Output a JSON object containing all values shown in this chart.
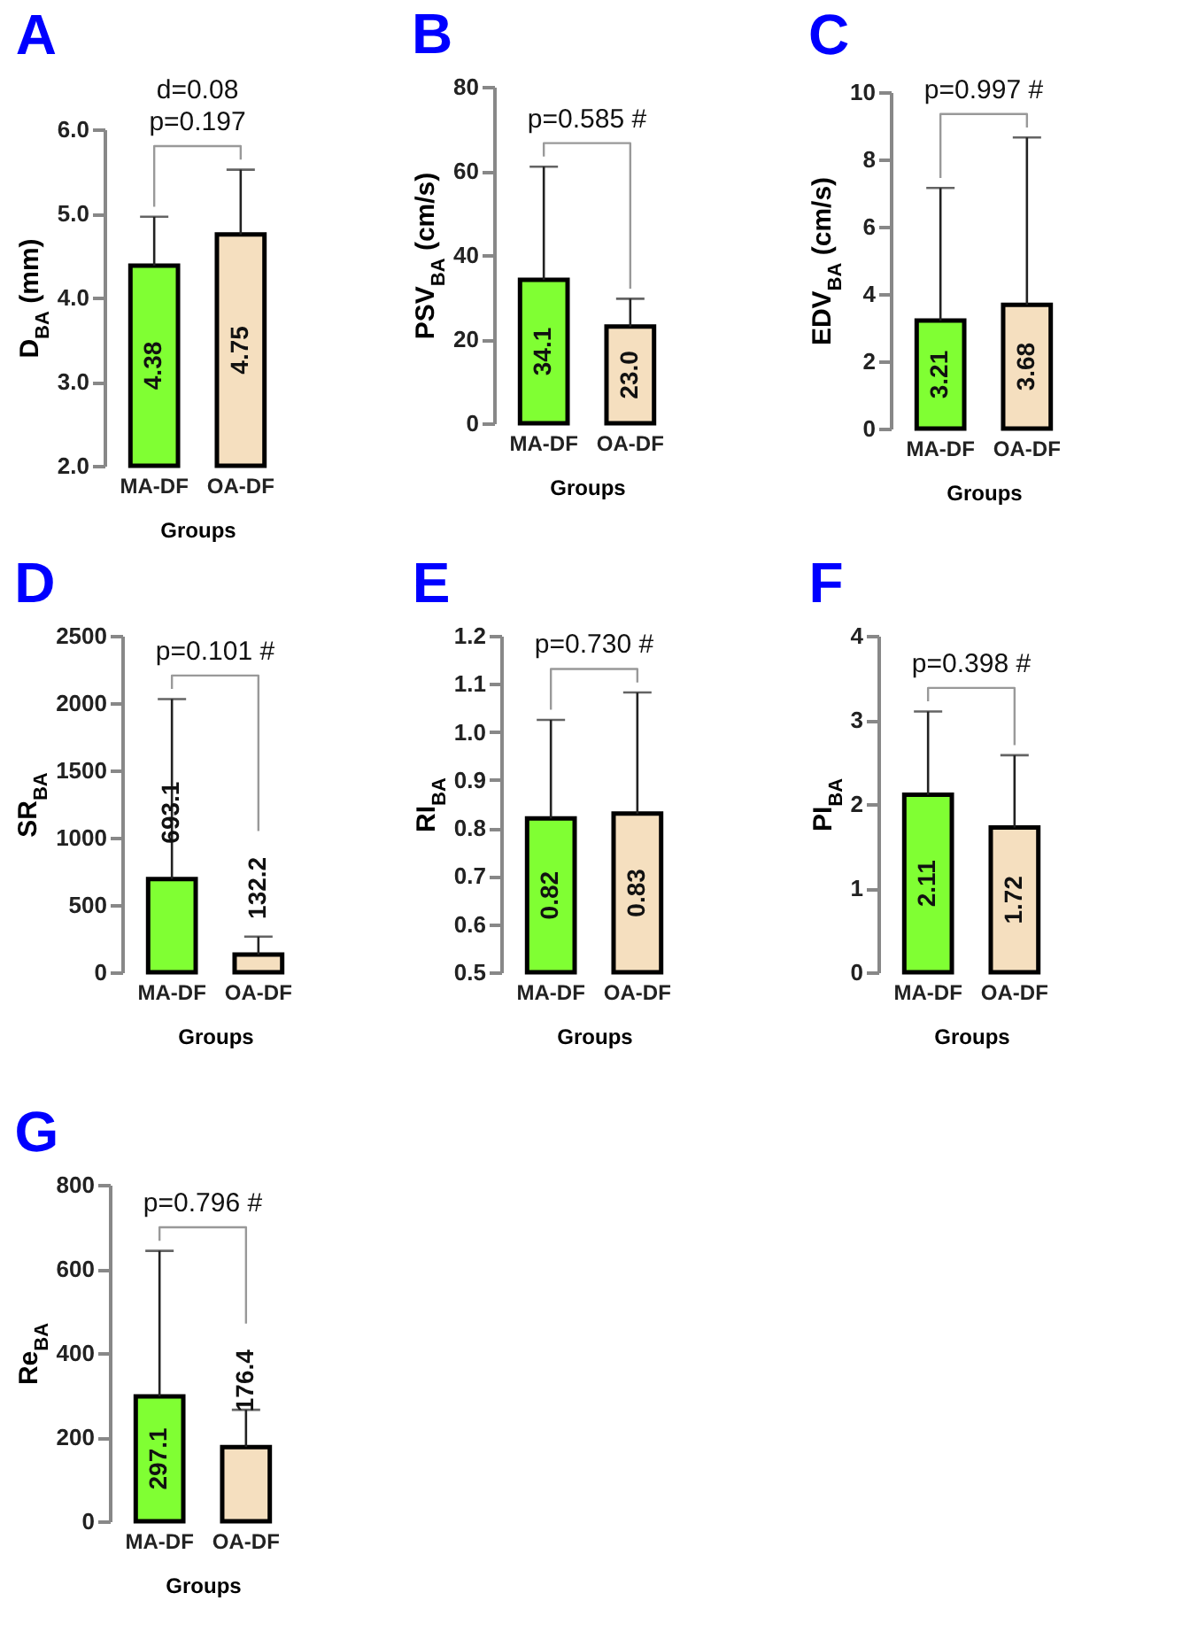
{
  "chart_data": [
    {
      "type": "bar",
      "title": "A",
      "categories": [
        "MA-DF",
        "OA-DF"
      ],
      "values": [
        4.38,
        4.75
      ],
      "value_labels": [
        "4.38",
        "4.75"
      ],
      "colors": [
        "#80ff33",
        "#f5dfbf"
      ],
      "errors": [
        [
          4.38,
          4.96
        ],
        [
          4.75,
          5.52
        ]
      ],
      "ylim": [
        2,
        6
      ],
      "yticks": [
        {
          "value": 2,
          "label": "2.0"
        },
        {
          "value": 3,
          "label": "3.0"
        },
        {
          "value": 4,
          "label": "4.0"
        },
        {
          "value": 5,
          "label": "5.0"
        },
        {
          "value": 6,
          "label": "6.0"
        }
      ],
      "xlabel": "Groups",
      "ylabel": "D$_{BA}$ (mm)",
      "annotations": [
        "d=0.08",
        "p=0.197"
      ]
    },
    {
      "type": "bar",
      "title": "B",
      "categories": [
        "MA-DF",
        "OA-DF"
      ],
      "values": [
        34.1,
        23.0
      ],
      "value_labels": [
        "34.1",
        "23.0"
      ],
      "colors": [
        "#80ff33",
        "#f5dfbf"
      ],
      "errors": [
        [
          34.1,
          61
        ],
        [
          23.0,
          29.6
        ]
      ],
      "ylim": [
        0,
        80
      ],
      "yticks": [
        0,
        20,
        40,
        60,
        80
      ],
      "xlabel": "Groups",
      "ylabel": "PSV$_{BA}$ (cm/s)",
      "annotations": [
        "p=0.585 #"
      ]
    },
    {
      "type": "bar",
      "title": "C",
      "categories": [
        "MA-DF",
        "OA-DF"
      ],
      "values": [
        3.21,
        3.68
      ],
      "value_labels": [
        "3.21",
        "3.68"
      ],
      "colors": [
        "#80ff33",
        "#f5dfbf"
      ],
      "errors": [
        [
          3.21,
          7.15
        ],
        [
          3.68,
          8.65
        ]
      ],
      "ylim": [
        0,
        10
      ],
      "yticks": [
        0,
        2,
        4,
        6,
        8,
        10
      ],
      "xlabel": "Groups",
      "ylabel": "EDV$_{BA}$ (cm/s)",
      "annotations": [
        "p=0.997 #"
      ]
    },
    {
      "type": "bar",
      "title": "D",
      "categories": [
        "MA-DF",
        "OA-DF"
      ],
      "values": [
        693.1,
        132.2
      ],
      "value_labels": [
        "693.1",
        "132.2"
      ],
      "colors": [
        "#80ff33",
        "#f5dfbf"
      ],
      "errors": [
        [
          693.1,
          2030
        ],
        [
          132.2,
          265
        ]
      ],
      "ylim": [
        0,
        2500
      ],
      "yticks": [
        0,
        500,
        1000,
        1500,
        2000,
        2500
      ],
      "xlabel": "Groups",
      "ylabel": "SR$_{BA}$",
      "annotations": [
        "p=0.101 #"
      ]
    },
    {
      "type": "bar",
      "title": "E",
      "categories": [
        "MA-DF",
        "OA-DF"
      ],
      "values": [
        0.82,
        0.83
      ],
      "value_labels": [
        "0.82",
        "0.83"
      ],
      "colors": [
        "#80ff33",
        "#f5dfbf"
      ],
      "errors": [
        [
          0.82,
          1.025
        ],
        [
          0.83,
          1.082
        ]
      ],
      "ylim": [
        0.5,
        1.2
      ],
      "yticks": [
        0.5,
        0.6,
        0.7,
        0.8,
        0.9,
        {
          "value": 1,
          "label": "1.0"
        },
        1.1,
        1.2
      ],
      "xlabel": "Groups",
      "ylabel": "RI$_{BA}$",
      "annotations": [
        "p=0.730 #"
      ]
    },
    {
      "type": "bar",
      "title": "F",
      "categories": [
        "MA-DF",
        "OA-DF"
      ],
      "values": [
        2.11,
        1.72
      ],
      "value_labels": [
        "2.11",
        "1.72"
      ],
      "colors": [
        "#80ff33",
        "#f5dfbf"
      ],
      "errors": [
        [
          2.11,
          3.1
        ],
        [
          1.72,
          2.58
        ]
      ],
      "ylim": [
        0,
        4
      ],
      "yticks": [
        0,
        1,
        2,
        3,
        4
      ],
      "xlabel": "Groups",
      "ylabel": "PI$_{BA}$",
      "annotations": [
        "p=0.398 #"
      ]
    },
    {
      "type": "bar",
      "title": "G",
      "categories": [
        "MA-DF",
        "OA-DF"
      ],
      "values": [
        297.1,
        176.4
      ],
      "value_labels": [
        "297.1",
        "176.4"
      ],
      "colors": [
        "#80ff33",
        "#f5dfbf"
      ],
      "errors": [
        [
          297.1,
          643
        ],
        [
          176.4,
          265
        ]
      ],
      "ylim": [
        0,
        800
      ],
      "yticks": [
        0,
        200,
        400,
        600,
        800
      ],
      "xlabel": "Groups",
      "ylabel": "Re$_{BA}$",
      "annotations": [
        "p=0.796 #"
      ]
    }
  ]
}
